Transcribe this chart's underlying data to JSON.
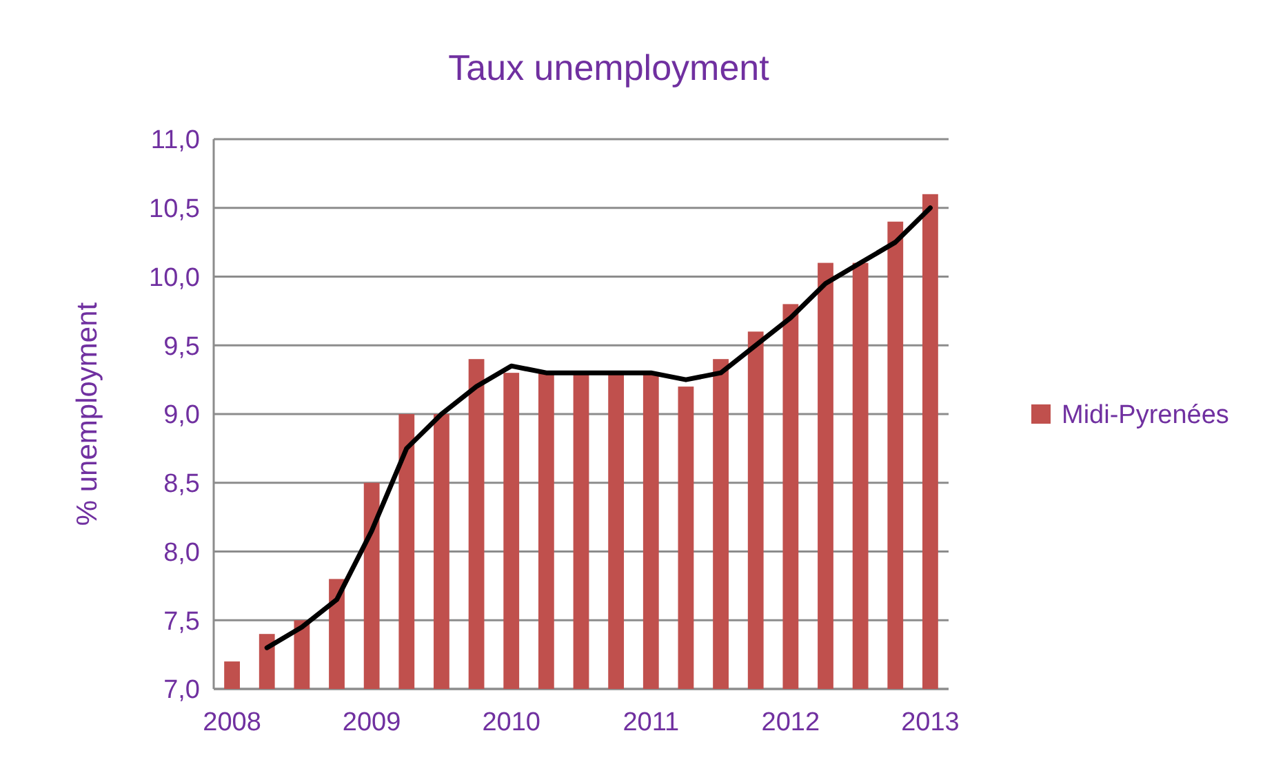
{
  "chart_data": {
    "type": "bar",
    "title": "Taux unemployment",
    "ylabel": "% unemployment",
    "categories": [
      "2008",
      null,
      null,
      null,
      "2009",
      null,
      null,
      null,
      "2010",
      null,
      null,
      null,
      "2011",
      null,
      null,
      null,
      "2012",
      null,
      null,
      null,
      "2013"
    ],
    "series": [
      {
        "name": "Midi-Pyrenées",
        "color": "#c0504d",
        "values": [
          7.2,
          7.4,
          7.5,
          7.8,
          8.5,
          9.0,
          9.0,
          9.4,
          9.3,
          9.3,
          9.3,
          9.3,
          9.3,
          9.2,
          9.4,
          9.6,
          9.8,
          10.1,
          10.1,
          10.4,
          10.6
        ]
      },
      {
        "type": "line",
        "color": "#000000",
        "values": [
          null,
          7.3,
          7.45,
          7.65,
          8.15,
          8.75,
          9.0,
          9.2,
          9.35,
          9.3,
          9.3,
          9.3,
          9.3,
          9.25,
          9.3,
          9.5,
          9.7,
          9.95,
          10.1,
          10.25,
          10.5
        ]
      }
    ],
    "ylim": [
      7,
      11
    ],
    "yticks": [
      {
        "value": 7,
        "label": "7,0"
      },
      {
        "value": 7.5,
        "label": "7,5"
      },
      {
        "value": 8,
        "label": "8,0"
      },
      {
        "value": 8.5,
        "label": "8,5"
      },
      {
        "value": 9,
        "label": "9,0"
      },
      {
        "value": 9.5,
        "label": "9,5"
      },
      {
        "value": 10,
        "label": "10,0"
      },
      {
        "value": 10.5,
        "label": "10,5"
      },
      {
        "value": 11,
        "label": "11,0"
      }
    ],
    "grid": "y",
    "legend": "right",
    "marker": "none",
    "line_style": "solid"
  }
}
